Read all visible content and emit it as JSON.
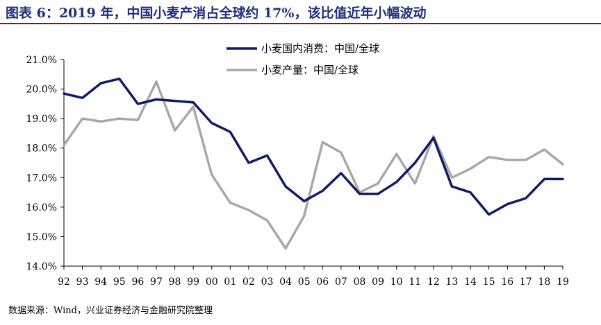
{
  "title": "图表 6：2019 年，中国小麦产消占全球约 17%，该比值近年小幅波动",
  "source": "数据来源：Wind，兴业证券经济与金融研究院整理",
  "chart_data": {
    "type": "line",
    "categories": [
      "92",
      "93",
      "94",
      "95",
      "96",
      "97",
      "98",
      "99",
      "00",
      "01",
      "02",
      "03",
      "04",
      "05",
      "06",
      "07",
      "08",
      "09",
      "10",
      "11",
      "12",
      "13",
      "14",
      "15",
      "16",
      "17",
      "18",
      "19"
    ],
    "ylim": [
      14.0,
      21.0
    ],
    "yticks": [
      "14.0%",
      "15.0%",
      "16.0%",
      "17.0%",
      "18.0%",
      "19.0%",
      "20.0%",
      "21.0%"
    ],
    "ytick_values": [
      14.0,
      15.0,
      16.0,
      17.0,
      18.0,
      19.0,
      20.0,
      21.0
    ],
    "grid": false,
    "legend_position": "top-center",
    "series": [
      {
        "name": "小麦国内消费：中国/全球",
        "color": "#101a6b",
        "values": [
          19.85,
          19.7,
          20.2,
          20.35,
          19.5,
          19.65,
          19.6,
          19.55,
          18.85,
          18.55,
          17.5,
          17.75,
          16.7,
          16.2,
          16.55,
          17.15,
          16.45,
          16.45,
          16.85,
          17.5,
          18.35,
          16.7,
          16.5,
          15.75,
          16.1,
          16.3,
          16.95,
          16.95
        ]
      },
      {
        "name": "小麦产量：中国/全球",
        "color": "#a8a8a8",
        "values": [
          18.1,
          19.0,
          18.9,
          19.0,
          18.95,
          20.25,
          18.6,
          19.4,
          17.1,
          16.15,
          15.9,
          15.55,
          14.6,
          15.7,
          18.2,
          17.85,
          16.5,
          16.8,
          17.8,
          16.8,
          18.4,
          17.0,
          17.3,
          17.7,
          17.6,
          17.6,
          17.95,
          17.45
        ]
      }
    ]
  }
}
